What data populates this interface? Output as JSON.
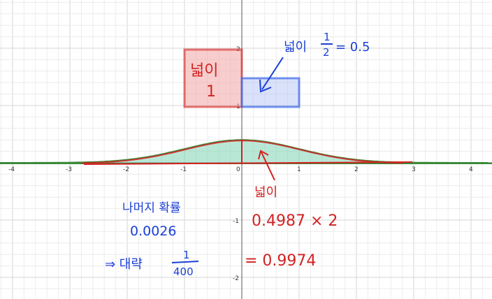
{
  "graph": {
    "x_ticks": [
      "-4",
      "-3",
      "-2",
      "-1",
      "0",
      "1",
      "2",
      "3",
      "4"
    ],
    "y_ticks": [
      "2",
      "1",
      "-1",
      "-2"
    ],
    "colors": {
      "curve": "#3a8a3a",
      "shade": "#7fd4b4",
      "red": "#d32222",
      "blue": "#1a3fd6",
      "axis": "#555555",
      "grid": "#e6e6e6"
    }
  },
  "annotations": {
    "area_label_top": "넓이",
    "area_value_top": "1",
    "blue_area_label": "넓이",
    "blue_fraction_num": "1",
    "blue_fraction_den": "2",
    "blue_area_value": "= 0.5",
    "area_label_mid": "넓이",
    "calc_line_1": "0.4987 × 2",
    "calc_line_2": "= 0.9974",
    "remain_label": "나머지 확률",
    "remain_value": "0.0026",
    "approx_prefix": "⇒ 대략",
    "approx_num": "1",
    "approx_den": "400"
  }
}
